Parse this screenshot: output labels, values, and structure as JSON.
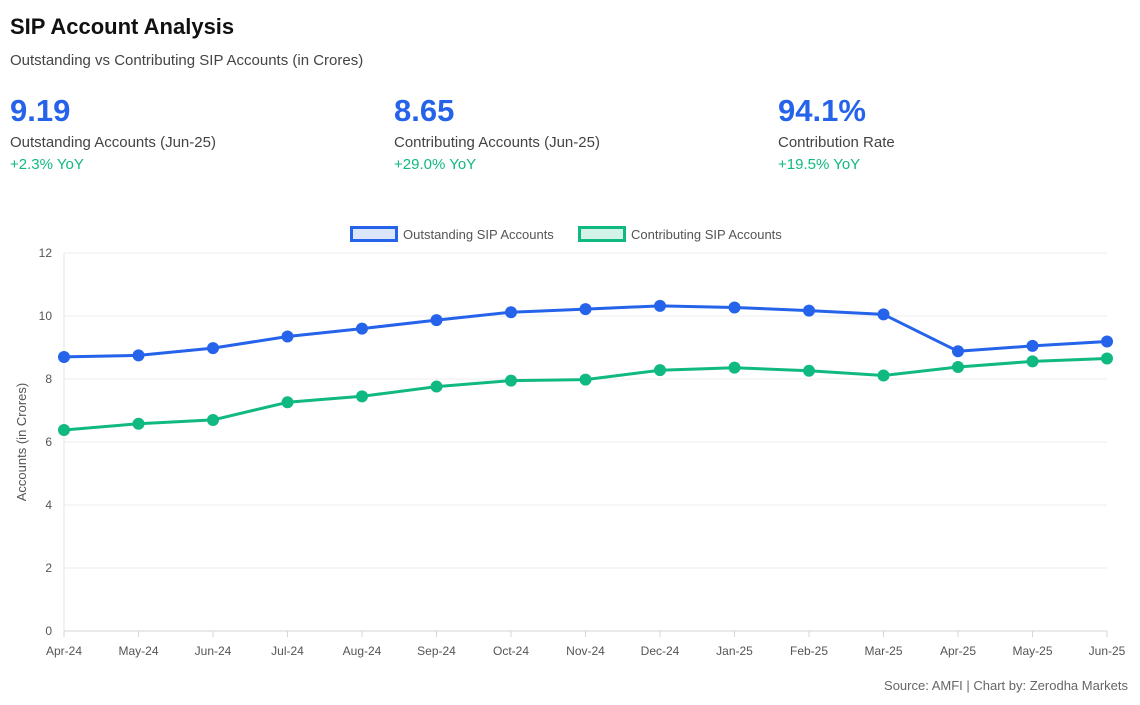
{
  "header": {
    "title": "SIP Account Analysis",
    "subtitle": "Outstanding vs Contributing SIP Accounts (in Crores)"
  },
  "kpis": [
    {
      "value": "9.19",
      "label": "Outstanding Accounts (Jun-25)",
      "change": "+2.3% YoY"
    },
    {
      "value": "8.65",
      "label": "Contributing Accounts (Jun-25)",
      "change": "+29.0% YoY"
    },
    {
      "value": "94.1%",
      "label": "Contribution Rate",
      "change": "+19.5% YoY"
    }
  ],
  "colors": {
    "outstanding": "#2563eb",
    "outstanding_fill": "#dbe6fb",
    "contributing": "#10b981",
    "contributing_fill": "#d3f3e8",
    "kpi_value": "#2563eb",
    "kpi_change": "#10b981"
  },
  "chart_data": {
    "type": "line",
    "categories": [
      "Apr-24",
      "May-24",
      "Jun-24",
      "Jul-24",
      "Aug-24",
      "Sep-24",
      "Oct-24",
      "Nov-24",
      "Dec-24",
      "Jan-25",
      "Feb-25",
      "Mar-25",
      "Apr-25",
      "May-25",
      "Jun-25"
    ],
    "series": [
      {
        "name": "Outstanding SIP Accounts",
        "values": [
          8.7,
          8.75,
          8.98,
          9.35,
          9.6,
          9.87,
          10.12,
          10.22,
          10.32,
          10.27,
          10.17,
          10.05,
          8.88,
          9.05,
          9.19
        ]
      },
      {
        "name": "Contributing SIP Accounts",
        "values": [
          6.38,
          6.58,
          6.7,
          7.26,
          7.45,
          7.76,
          7.95,
          7.98,
          8.28,
          8.36,
          8.26,
          8.11,
          8.38,
          8.56,
          8.65
        ]
      }
    ],
    "xlabel": "",
    "ylabel": "Accounts (in Crores)",
    "ylim": [
      0,
      12
    ],
    "yticks": [
      0,
      2,
      4,
      6,
      8,
      10,
      12
    ],
    "grid": true,
    "legend": "top-center"
  },
  "footer": {
    "source": "Source: AMFI | Chart by: Zerodha Markets"
  }
}
